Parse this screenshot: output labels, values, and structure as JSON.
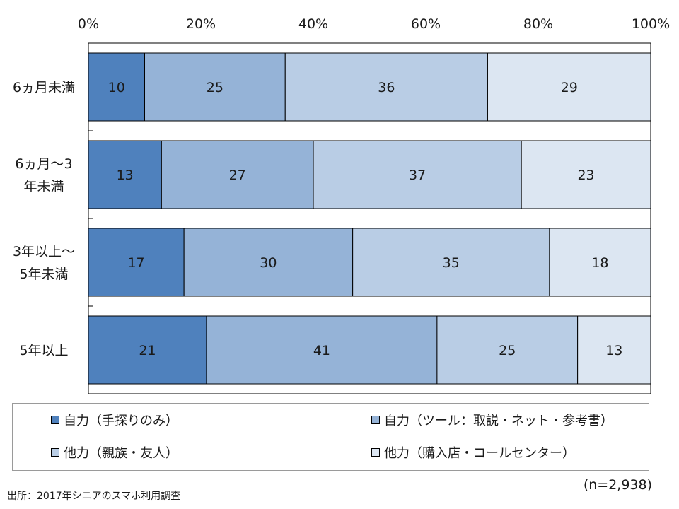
{
  "chart_data": {
    "type": "bar",
    "orientation": "horizontal",
    "stacked": "percent",
    "xlim": [
      0,
      100
    ],
    "x_ticks": [
      "0%",
      "20%",
      "40%",
      "60%",
      "80%",
      "100%"
    ],
    "categories": [
      "6ヵ月未満",
      "6ヵ月～3\n年未満",
      "3年以上～\n5年未満",
      "5年以上"
    ],
    "series": [
      {
        "name": "自力（手探りのみ）",
        "color": "#4f81bd",
        "values": [
          10,
          13,
          17,
          21
        ]
      },
      {
        "name": "自力（ツール：取説・ネット・参考書）",
        "color": "#95b3d7",
        "values": [
          25,
          27,
          30,
          41
        ]
      },
      {
        "name": "他力（親族・友人）",
        "color": "#b9cde5",
        "values": [
          36,
          37,
          35,
          25
        ]
      },
      {
        "name": "他力（購入店・コールセンター）",
        "color": "#dce6f2",
        "values": [
          29,
          23,
          18,
          13
        ]
      }
    ],
    "legend_position": "bottom",
    "grid": false
  },
  "footer": {
    "source": "出所：2017年シニアのスマホ利用調査",
    "sample": "(n=2,938)"
  }
}
